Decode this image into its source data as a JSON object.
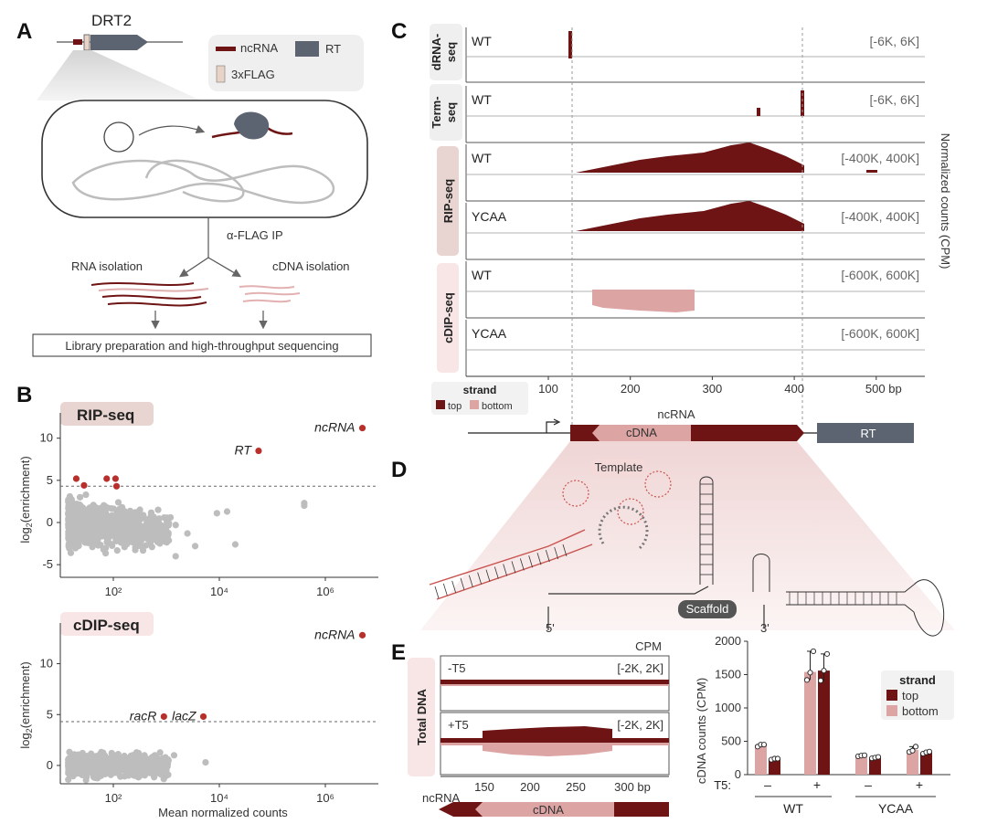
{
  "panel_labels": {
    "a": "A",
    "b": "B",
    "c": "C",
    "d": "D",
    "e": "E"
  },
  "colors": {
    "dark": "#6e1414",
    "light": "#dda4a4",
    "grey": "#bdbdbd",
    "rt": "#5b6470",
    "flag": "#e9d3c7"
  },
  "panel_a": {
    "gene_label": "DRT2",
    "legend": {
      "ncrna": "ncRNA",
      "rt": "RT",
      "flag": "3xFLAG"
    },
    "ip_label": "α-FLAG IP",
    "rna_isolation": "RNA isolation",
    "cdna_isolation": "cDNA isolation",
    "library_box": "Library preparation and high-throughput sequencing"
  },
  "panel_c": {
    "assays": [
      "dRNA-\nseq",
      "Term-\nseq",
      "RIP-seq",
      "cDIP-seq"
    ],
    "tracks": [
      {
        "sample": "WT",
        "range": "[-6K, 6K]"
      },
      {
        "sample": "WT",
        "range": "[-6K, 6K]"
      },
      {
        "sample": "WT",
        "range": "[-400K, 400K]"
      },
      {
        "sample": "YCAA",
        "range": "[-400K, 400K]"
      },
      {
        "sample": "WT",
        "range": "[-600K, 600K]"
      },
      {
        "sample": "YCAA",
        "range": "[-600K, 600K]"
      }
    ],
    "axis_ticks": [
      "100",
      "200",
      "300",
      "400",
      "500 bp"
    ],
    "ylabel": "Normalized counts (CPM)",
    "strand_title": "strand",
    "strand_top": "top",
    "strand_bottom": "bottom",
    "map": {
      "ncrna": "ncRNA",
      "cdna": "cDNA",
      "rt": "RT"
    }
  },
  "panel_d": {
    "template": "Template",
    "scaffold": "Scaffold",
    "five_prime": "5'",
    "three_prime": "3'"
  },
  "panel_e": {
    "total_dna": "Total DNA",
    "cpm_label": "CPM",
    "track_minus": "-T5",
    "track_plus": "+T5",
    "range": "[-2K, 2K]",
    "map_ncrna": "ncRNA",
    "map_cdna": "cDNA"
  },
  "chart_data": [
    {
      "type": "scatter",
      "title": "RIP-seq",
      "xlabel": "",
      "ylabel": "log2(enrichment)",
      "xscale": "log",
      "xlim": [
        10,
        10000000
      ],
      "ylim": [
        -6.5,
        13
      ],
      "y_ticks": [
        "10",
        "5",
        "0",
        "-5"
      ],
      "x_ticks": [
        "10²",
        "10⁴",
        "10⁶"
      ],
      "threshold": 4.3,
      "highlighted": [
        {
          "label": "ncRNA",
          "x": 5000000,
          "y": 11.2
        },
        {
          "label": "RT",
          "x": 55000,
          "y": 8.5
        },
        {
          "label": "",
          "x": 20,
          "y": 5.2
        },
        {
          "label": "",
          "x": 28,
          "y": 4.4
        },
        {
          "label": "",
          "x": 75,
          "y": 5.2
        },
        {
          "label": "",
          "x": 110,
          "y": 5.2
        },
        {
          "label": "",
          "x": 115,
          "y": 4.3
        }
      ],
      "background_outliers": [
        {
          "x": 700,
          "y": 1.5
        },
        {
          "x": 1200,
          "y": 0.6
        },
        {
          "x": 1500,
          "y": -0.3
        },
        {
          "x": 2500,
          "y": -1.3
        },
        {
          "x": 3500,
          "y": -2.8
        },
        {
          "x": 9000,
          "y": 1.1
        },
        {
          "x": 14000,
          "y": 1.3
        },
        {
          "x": 20000,
          "y": -2.6
        },
        {
          "x": 400000,
          "y": 2.3
        },
        {
          "x": 400000,
          "y": 2.0
        },
        {
          "x": 1500,
          "y": -4.0
        }
      ]
    },
    {
      "type": "scatter",
      "title": "cDIP-seq",
      "xlabel": "Mean normalized counts",
      "ylabel": "log2(enrichment)",
      "xscale": "log",
      "xlim": [
        10,
        10000000
      ],
      "ylim": [
        -1.8,
        14
      ],
      "y_ticks": [
        "10",
        "5",
        "0"
      ],
      "x_ticks": [
        "10²",
        "10⁴",
        "10⁶"
      ],
      "threshold": 4.3,
      "highlighted": [
        {
          "label": "ncRNA",
          "x": 5000000,
          "y": 12.8
        },
        {
          "label": "racR",
          "x": 900,
          "y": 4.8
        },
        {
          "label": "lacZ",
          "x": 5000,
          "y": 4.8
        }
      ],
      "background_outliers": [
        {
          "x": 1100,
          "y": 0.5
        },
        {
          "x": 1400,
          "y": 1.0
        },
        {
          "x": 800,
          "y": -0.9
        },
        {
          "x": 5500,
          "y": 0.3
        }
      ]
    },
    {
      "type": "bar",
      "title": "",
      "ylabel": "cDNA counts (CPM)",
      "ylim": [
        0,
        2000
      ],
      "y_ticks": [
        0,
        500,
        1000,
        1500,
        2000
      ],
      "groups": [
        "WT",
        "YCAA"
      ],
      "t5_labels": [
        "–",
        "+",
        "–",
        "+"
      ],
      "t5_axis_label": "T5:",
      "legend_title": "strand",
      "series": [
        {
          "name": "bottom",
          "values": [
            440,
            1540,
            280,
            370
          ]
        },
        {
          "name": "top",
          "values": [
            235,
            1560,
            255,
            330
          ]
        }
      ],
      "replicates": [
        {
          "bottom": [
            420,
            450,
            450
          ],
          "top": [
            225,
            240,
            240
          ]
        },
        {
          "bottom": [
            1420,
            1530,
            1850
          ],
          "top": [
            1410,
            1560,
            1810
          ]
        },
        {
          "bottom": [
            275,
            285,
            290
          ],
          "top": [
            245,
            255,
            265
          ]
        },
        {
          "bottom": [
            340,
            360,
            420
          ],
          "top": [
            315,
            335,
            345
          ]
        }
      ]
    }
  ]
}
